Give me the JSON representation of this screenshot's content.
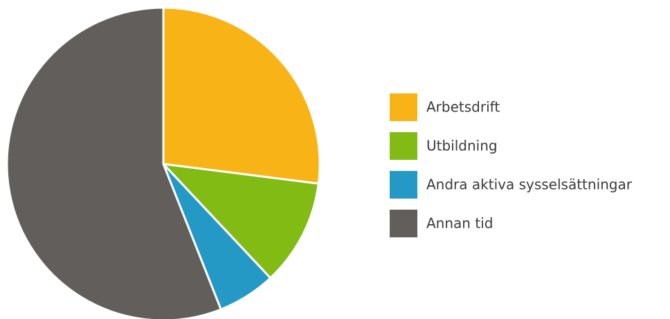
{
  "chart_data": {
    "type": "pie",
    "categories": [
      "Arbetsdrift",
      "Utbildning",
      "Andra aktiva sysselsättningar",
      "Annan tid"
    ],
    "values": [
      27,
      11,
      6,
      56
    ],
    "colors": [
      "#f8b416",
      "#82bb14",
      "#2599c5",
      "#625e5c"
    ],
    "legend": "right"
  }
}
